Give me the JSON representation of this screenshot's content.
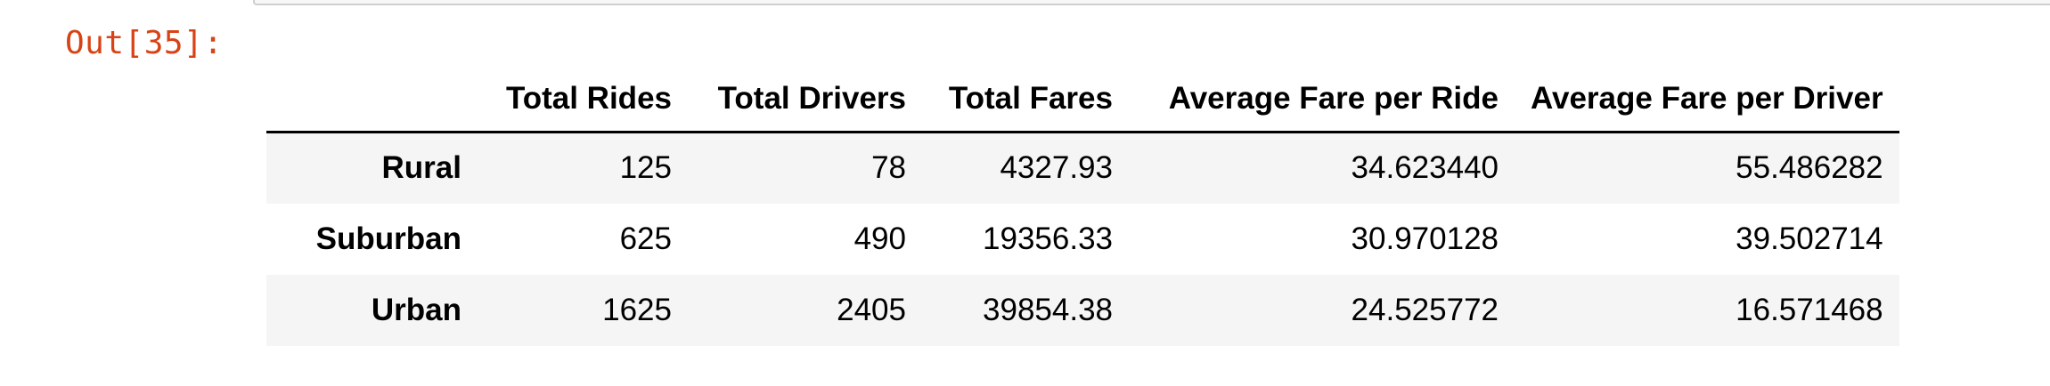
{
  "output_prompt": "Out[35]:",
  "table": {
    "columns": [
      "",
      "Total Rides",
      "Total Drivers",
      "Total Fares",
      "Average Fare per Ride",
      "Average Fare per Driver"
    ],
    "rows": [
      {
        "index": "Rural",
        "values": [
          "125",
          "78",
          "4327.93",
          "34.623440",
          "55.486282"
        ]
      },
      {
        "index": "Suburban",
        "values": [
          "625",
          "490",
          "19356.33",
          "30.970128",
          "39.502714"
        ]
      },
      {
        "index": "Urban",
        "values": [
          "1625",
          "2405",
          "39854.38",
          "24.525772",
          "16.571468"
        ]
      }
    ]
  }
}
